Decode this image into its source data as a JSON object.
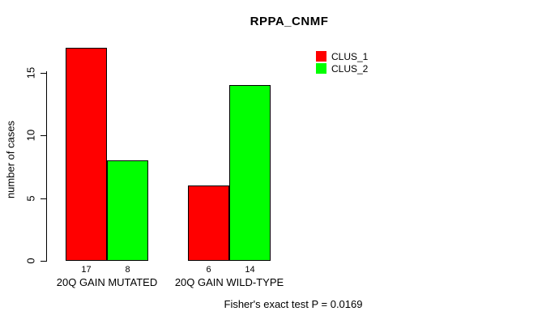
{
  "chart_data": {
    "type": "bar",
    "title": "RPPA_CNMF",
    "xlabel": "",
    "ylabel": "number of cases",
    "categories": [
      "20Q GAIN MUTATED",
      "20Q GAIN WILD-TYPE"
    ],
    "series": [
      {
        "name": "CLUS_1",
        "color": "#ff0000",
        "values": [
          17,
          6
        ]
      },
      {
        "name": "CLUS_2",
        "color": "#00ff00",
        "values": [
          8,
          14
        ]
      }
    ],
    "ylim": [
      0,
      17
    ],
    "yticks": [
      0,
      5,
      10,
      15
    ],
    "grid": false,
    "legend_position": "top-right",
    "annotation": "Fisher's exact test P = 0.0169"
  },
  "colors": {
    "background": "#ffffff",
    "axis": "#000000",
    "text": "#000000",
    "bar_border": "#000000"
  }
}
